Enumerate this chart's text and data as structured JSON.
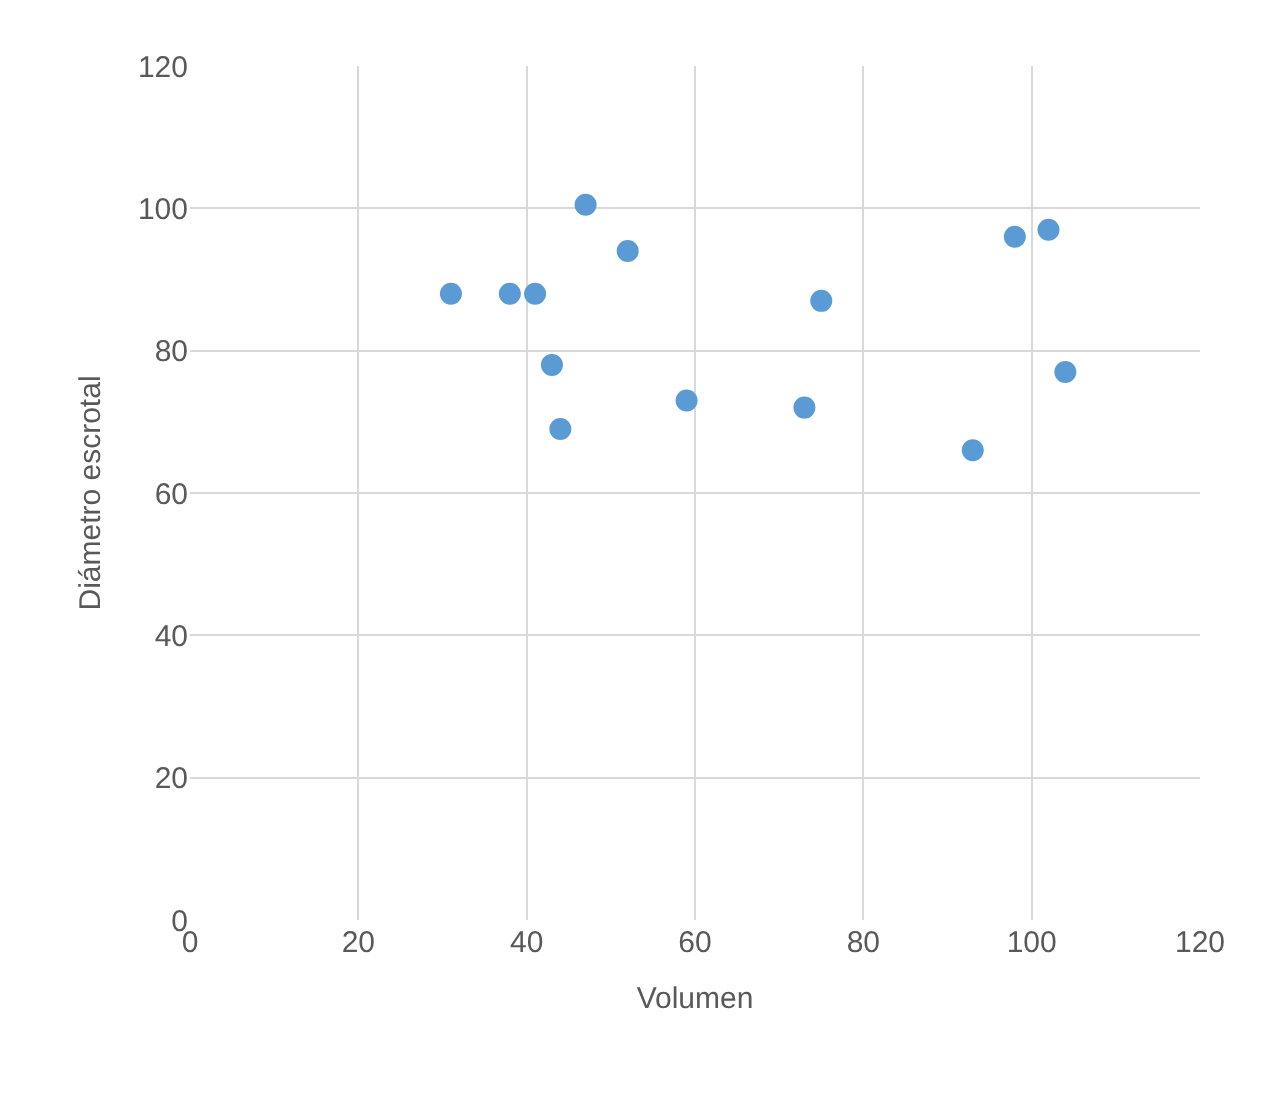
{
  "chart_data": {
    "type": "scatter",
    "xlabel": "Volumen",
    "ylabel": "Diámetro escrotal",
    "x": [
      31,
      38,
      41,
      47,
      52,
      43,
      44,
      59,
      73,
      75,
      93,
      98,
      102,
      104
    ],
    "values": [
      88,
      88,
      88,
      100.5,
      94,
      78,
      69,
      73,
      72,
      87,
      66,
      96,
      97,
      77
    ],
    "color": "#5b9bd5",
    "marker": "circle",
    "grid": true,
    "xlim": [
      0,
      120
    ],
    "xticks": [
      0,
      20,
      40,
      60,
      80,
      100,
      120
    ],
    "ylim": [
      0,
      120
    ],
    "yticks": [
      0,
      20,
      40,
      60,
      80,
      100,
      120
    ]
  }
}
